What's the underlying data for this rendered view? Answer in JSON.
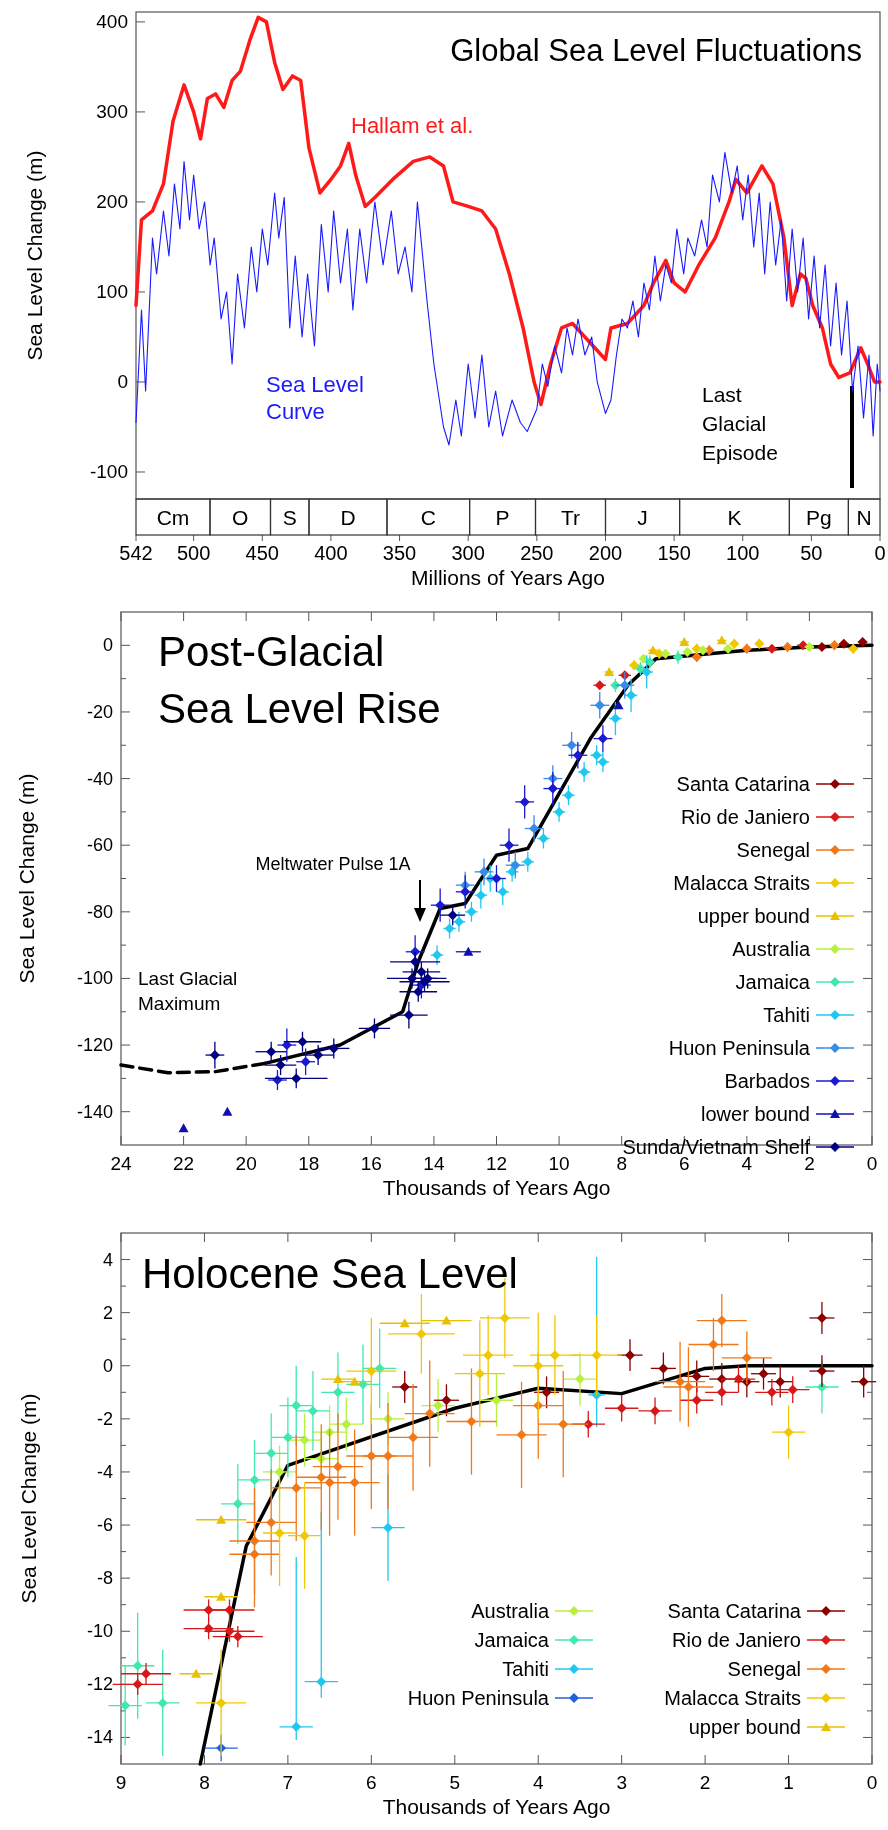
{
  "chart_data": [
    {
      "type": "line",
      "title": "Global Sea Level Fluctuations",
      "xlabel": "Millions of Years Ago",
      "ylabel": "Sea Level Change (m)",
      "xlim": [
        542,
        0
      ],
      "ylim": [
        -130,
        411
      ],
      "xticks": [
        542,
        500,
        450,
        400,
        350,
        300,
        250,
        200,
        150,
        100,
        50,
        0
      ],
      "yticks": [
        -100,
        0,
        100,
        200,
        300,
        400
      ],
      "series": [
        {
          "name": "Hallam et al.",
          "color": "#ff1a1a",
          "x": [
            542,
            538,
            530,
            522,
            515,
            507,
            500,
            495,
            490,
            484,
            478,
            472,
            466,
            459,
            453,
            447,
            441,
            435,
            428,
            422,
            416,
            408,
            400,
            393,
            387,
            382,
            375,
            368,
            355,
            340,
            328,
            318,
            311,
            300,
            290,
            280,
            270,
            260,
            252,
            247,
            240,
            232,
            224,
            212,
            200,
            196,
            184,
            172,
            165,
            156,
            150,
            142,
            132,
            120,
            110,
            105,
            97,
            86,
            78,
            70,
            64,
            58,
            54,
            49,
            42,
            36,
            30,
            22,
            14,
            9,
            4,
            0
          ],
          "values": [
            85,
            180,
            190,
            220,
            290,
            330,
            300,
            270,
            315,
            320,
            305,
            335,
            345,
            380,
            405,
            400,
            355,
            325,
            340,
            335,
            260,
            210,
            225,
            240,
            265,
            230,
            195,
            205,
            225,
            245,
            250,
            240,
            200,
            195,
            190,
            170,
            120,
            60,
            0,
            -25,
            20,
            60,
            65,
            45,
            25,
            60,
            65,
            85,
            110,
            135,
            110,
            100,
            130,
            160,
            200,
            225,
            210,
            240,
            220,
            160,
            85,
            120,
            115,
            85,
            60,
            20,
            5,
            10,
            38,
            20,
            0,
            0
          ]
        },
        {
          "name": "Sea Level Curve",
          "color": "#1a1aff",
          "x": [
            542,
            538,
            535,
            530,
            527,
            522,
            518,
            514,
            510,
            507,
            503,
            500,
            496,
            492,
            488,
            485,
            480,
            476,
            472,
            468,
            463,
            458,
            454,
            450,
            446,
            441,
            438,
            434,
            430,
            426,
            421,
            417,
            412,
            407,
            402,
            398,
            393,
            388,
            384,
            379,
            374,
            368,
            362,
            356,
            351,
            346,
            341,
            337,
            330,
            325,
            318,
            314,
            309,
            305,
            300,
            295,
            290,
            285,
            280,
            275,
            268,
            262,
            257,
            250,
            246,
            242,
            237,
            232,
            228,
            224,
            220,
            215,
            210,
            206,
            200,
            196,
            192,
            188,
            184,
            180,
            176,
            172,
            168,
            164,
            160,
            156,
            152,
            148,
            143,
            140,
            135,
            130,
            126,
            122,
            117,
            113,
            108,
            104,
            100,
            96,
            92,
            88,
            84,
            80,
            76,
            72,
            68,
            64,
            60,
            56,
            52,
            48,
            44,
            40,
            36,
            32,
            28,
            24,
            20,
            16,
            12,
            8,
            5,
            2,
            0
          ],
          "values": [
            -45,
            80,
            -10,
            160,
            120,
            190,
            140,
            220,
            170,
            245,
            180,
            230,
            170,
            200,
            130,
            160,
            70,
            100,
            20,
            120,
            60,
            150,
            100,
            170,
            130,
            210,
            160,
            205,
            60,
            140,
            50,
            120,
            40,
            175,
            100,
            190,
            110,
            170,
            80,
            170,
            110,
            200,
            130,
            190,
            120,
            150,
            100,
            200,
            90,
            20,
            -50,
            -70,
            -20,
            -60,
            20,
            -40,
            30,
            -50,
            -10,
            -60,
            -20,
            -45,
            -55,
            -30,
            20,
            -5,
            40,
            10,
            60,
            30,
            70,
            30,
            50,
            0,
            -35,
            -20,
            30,
            70,
            60,
            90,
            50,
            110,
            80,
            140,
            90,
            130,
            110,
            170,
            120,
            160,
            140,
            180,
            150,
            230,
            200,
            255,
            210,
            240,
            180,
            230,
            150,
            210,
            120,
            200,
            130,
            180,
            90,
            170,
            100,
            160,
            70,
            140,
            60,
            130,
            40,
            110,
            30,
            90,
            -10,
            40,
            -40,
            30,
            -60,
            20,
            -10
          ]
        }
      ],
      "annotations": [
        "Last Glacial Episode",
        "Cm",
        "O",
        "S",
        "D",
        "C",
        "P",
        "Tr",
        "J",
        "K",
        "Pg",
        "N"
      ]
    },
    {
      "type": "scatter",
      "title": "Post-Glacial Sea Level Rise",
      "xlabel": "Thousands of Years Ago",
      "ylabel": "Sea Level Change (m)",
      "xlim": [
        24,
        0
      ],
      "ylim": [
        -150,
        10
      ],
      "xticks": [
        24,
        22,
        20,
        18,
        16,
        14,
        12,
        10,
        8,
        6,
        4,
        2,
        0
      ],
      "yticks": [
        0,
        -20,
        -40,
        -60,
        -80,
        -100,
        -120,
        -140,
        {
          "value": -10,
          "label": null
        },
        {
          "value": -30,
          "label": null
        },
        {
          "value": -50,
          "label": null
        },
        {
          "value": -70,
          "label": null
        },
        {
          "value": -90,
          "label": null
        },
        {
          "value": -110,
          "label": null
        },
        {
          "value": -130,
          "label": null
        }
      ],
      "marker": "diamond",
      "legend": "right",
      "series": [
        {
          "name": "Santa Catarina",
          "color": "#8b0000",
          "x": [
            1.6,
            0.9,
            0.3
          ],
          "values": [
            -0.5,
            0.5,
            1
          ],
          "errors": [
            1,
            1,
            1
          ],
          "xerrors": [
            0.15,
            0.15,
            0.15
          ]
        },
        {
          "name": "Rio de Janiero",
          "color": "#d81818",
          "x": [
            8.7,
            7.9,
            3.2,
            2.2
          ],
          "values": [
            -12,
            -9,
            -1,
            0
          ],
          "errors": [
            1,
            1,
            1,
            1
          ],
          "xerrors": [
            0.2,
            0.2,
            0.2,
            0.2
          ]
        },
        {
          "name": "Senegal",
          "color": "#f07818",
          "x": [
            5.6,
            5.2,
            4.0,
            2.7,
            1.2
          ],
          "values": [
            -3.5,
            -1.5,
            -1,
            -0.5,
            0
          ],
          "errors": [
            1.5,
            1.5,
            1.5,
            1.5,
            1.5
          ],
          "xerrors": [
            0.15,
            0.15,
            0.15,
            0.15,
            0.15
          ]
        },
        {
          "name": "Malacca Straits",
          "color": "#f0c800",
          "x": [
            7.6,
            6.8,
            5.6,
            4.4,
            3.6,
            0.6
          ],
          "values": [
            -6,
            -2.5,
            -1,
            0.5,
            0.5,
            -1
          ],
          "errors": [
            1.5,
            1.5,
            1.5,
            1.5,
            1.5,
            1.5
          ],
          "xerrors": [
            0.15,
            0.15,
            0.15,
            0.15,
            0.15,
            0.15
          ]
        },
        {
          "name": "upper bound",
          "color": "#e8c000",
          "marker": "triangle",
          "x": [
            8.4,
            7.0,
            6.0,
            4.8
          ],
          "values": [
            -8,
            -1.5,
            1,
            1.5
          ],
          "xerrors": [
            0.15,
            0.15,
            0.15,
            0.15
          ]
        },
        {
          "name": "Australia",
          "color": "#b8f040",
          "x": [
            7.3,
            6.6,
            5.9,
            5.4,
            4.6,
            2.0
          ],
          "values": [
            -4,
            -2.5,
            -2,
            -1.5,
            -1,
            -0.5
          ],
          "errors": [
            1,
            1,
            1,
            1,
            1,
            1
          ],
          "xerrors": [
            0.15,
            0.15,
            0.15,
            0.15,
            0.15,
            0.15
          ]
        },
        {
          "name": "Jamaica",
          "color": "#40e8b0",
          "x": [
            8.2,
            7.4,
            7.1,
            6.2
          ],
          "values": [
            -12,
            -7,
            -5,
            -3.5
          ],
          "errors": [
            2,
            2,
            2,
            2
          ],
          "xerrors": [
            0.15,
            0.15,
            0.15,
            0.15
          ]
        },
        {
          "name": "Tahiti",
          "color": "#20c8f0",
          "x": [
            13.9,
            13.5,
            13.2,
            12.8,
            12.5,
            12.2,
            11.8,
            11.5,
            11.0,
            10.5,
            10.0,
            9.7,
            9.2,
            8.8,
            8.6,
            8.2,
            7.7,
            7.2
          ],
          "values": [
            -93,
            -85,
            -83,
            -80,
            -75,
            -70,
            -74,
            -68,
            -65,
            -58,
            -50,
            -45,
            -38,
            -33,
            -35,
            -22,
            -15,
            -8
          ],
          "errors": [
            3,
            3,
            3,
            3,
            4,
            4,
            4,
            3,
            3,
            3,
            3,
            3,
            3,
            3,
            3,
            5,
            5,
            5
          ],
          "xerrors": [
            0.2,
            0.2,
            0.2,
            0.2,
            0.2,
            0.2,
            0.2,
            0.2,
            0.2,
            0.2,
            0.2,
            0.2,
            0.2,
            0.2,
            0.2,
            0.2,
            0.2,
            0.2
          ]
        },
        {
          "name": "Huon Peninsula",
          "color": "#3a8ae8",
          "x": [
            13.0,
            12.4,
            11.4,
            10.8,
            10.2,
            9.6,
            8.7,
            7.9
          ],
          "values": [
            -72,
            -68,
            -66,
            -55,
            -40,
            -30,
            -18,
            -12
          ],
          "errors": [
            4,
            4,
            4,
            4,
            4,
            4,
            4,
            4
          ],
          "xerrors": [
            0.3,
            0.3,
            0.3,
            0.3,
            0.3,
            0.3,
            0.3,
            0.3
          ]
        },
        {
          "name": "Barbados",
          "color": "#1a1ad0",
          "x": [
            19.0,
            18.7,
            18.1,
            14.6,
            14.4,
            13.8,
            13.0,
            12.0,
            11.6,
            11.1,
            10.2,
            9.4,
            8.6
          ],
          "values": [
            -130.5,
            -120,
            -125,
            -92,
            -102,
            -78,
            -74,
            -70,
            -60,
            -47,
            -43,
            -33,
            -28
          ],
          "errors": [
            3,
            5,
            4,
            5,
            4,
            5,
            5,
            4,
            5,
            5,
            5,
            4,
            4
          ],
          "xerrors": [
            0.3,
            0.3,
            0.3,
            0.3,
            0.3,
            0.3,
            0.3,
            0.3,
            0.3,
            0.3,
            0.3,
            0.3,
            0.3
          ]
        },
        {
          "name": "lower bound",
          "color": "#1010b0",
          "marker": "triangle",
          "x": [
            22,
            20.6,
            12.9,
            8.1
          ],
          "values": [
            -145,
            -140,
            -92,
            -18
          ],
          "xerrors": [
            null,
            null,
            0.4,
            null
          ]
        },
        {
          "name": "Sunda/Vietnam Shelf",
          "color": "#000080",
          "x": [
            21,
            19.2,
            18.9,
            18.4,
            18.2,
            17.7,
            17.2,
            15.9,
            14.8,
            14.7,
            14.6,
            14.5,
            14.4,
            14.3,
            14.2,
            13.4
          ],
          "values": [
            -123,
            -122,
            -126,
            -130,
            -119,
            -123,
            -121,
            -115,
            -111,
            -100,
            -95,
            -104,
            -98,
            -101,
            -100,
            -81
          ],
          "errors": [
            4,
            3,
            3,
            3,
            3,
            3,
            3,
            3,
            4,
            3,
            3,
            3,
            3,
            3,
            3,
            3
          ],
          "xerrors": [
            0.3,
            0.5,
            0.5,
            1.0,
            0.6,
            0.5,
            0.5,
            0.5,
            0.6,
            0.8,
            0.8,
            0.6,
            0.6,
            0.8,
            0.6,
            0.4
          ]
        },
        {
          "type": "line",
          "color": "#000000",
          "marker": "none",
          "line_style": "dashed",
          "x": [
            24,
            22.5,
            21,
            19.4
          ],
          "values": [
            -126,
            -128.3,
            -128,
            -125.5
          ]
        },
        {
          "type": "line",
          "color": "#000000",
          "marker": "none",
          "x": [
            19.4,
            17,
            15,
            14.5,
            13.8,
            13,
            12,
            11,
            9,
            7.8,
            6.9,
            4,
            2,
            0
          ],
          "values": [
            -125.5,
            -120,
            -110,
            -95,
            -79,
            -77.5,
            -63,
            -61,
            -28,
            -12,
            -4,
            -1.5,
            -0.5,
            0
          ]
        }
      ],
      "annotations": [
        "Meltwater Pulse 1A",
        "Last Glacial Maximum"
      ]
    },
    {
      "type": "scatter",
      "title": "Holocene Sea Level",
      "xlabel": "Thousands of Years Ago",
      "ylabel": "Sea Level Change (m)",
      "xlim": [
        9,
        0
      ],
      "ylim": [
        -15,
        5
      ],
      "xticks": [
        9,
        8,
        7,
        6,
        5,
        4,
        3,
        2,
        1,
        0
      ],
      "yticks": [
        4,
        2,
        0,
        -2,
        -4,
        -6,
        -8,
        -10,
        -12,
        -14,
        {
          "value": 3,
          "label": null
        },
        {
          "value": 1,
          "label": null
        },
        {
          "value": -1,
          "label": null
        },
        {
          "value": -3,
          "label": null
        },
        {
          "value": -5,
          "label": null
        },
        {
          "value": -7,
          "label": null
        },
        {
          "value": -9,
          "label": null
        },
        {
          "value": -11,
          "label": null
        },
        {
          "value": -13,
          "label": null
        }
      ],
      "marker": "diamond",
      "legend": "bottom right",
      "series": [
        {
          "name": "Australia",
          "color": "#b8f040",
          "x": [
            6.8,
            6.5,
            6.3,
            5.8,
            5.2,
            4.5,
            3.5,
            6.6,
            7.1
          ],
          "values": [
            -2.8,
            -2.5,
            -2.2,
            -2.0,
            -1.5,
            -1.3,
            -0.5,
            -3.5,
            -4.0
          ],
          "errors": [
            1,
            1,
            1,
            1,
            1,
            1,
            1,
            1,
            1
          ],
          "xerrors": [
            0.2,
            0.2,
            0.2,
            0.2,
            0.2,
            0.2,
            0.2,
            0.2,
            0.2
          ]
        },
        {
          "name": "Jamaica",
          "color": "#40e8b0",
          "x": [
            8.8,
            8.5,
            8.95,
            7.6,
            7.4,
            7.2,
            7.0,
            6.9,
            6.7,
            6.4,
            6.1,
            5.9,
            0.6
          ],
          "values": [
            -11.3,
            -12.7,
            -12.8,
            -5.2,
            -4.3,
            -3.3,
            -2.7,
            -1.5,
            -1.7,
            -1.0,
            -0.7,
            -0.1,
            -0.8
          ],
          "errors": [
            2,
            2,
            1.5,
            1.5,
            1.5,
            1.5,
            1.5,
            1.5,
            1.5,
            1.5,
            1.5,
            1.5,
            1
          ],
          "xerrors": [
            0.2,
            0.2,
            0.2,
            0.2,
            0.2,
            0.2,
            0.2,
            0.2,
            0.2,
            0.2,
            0.2,
            0.2,
            0.2
          ]
        },
        {
          "name": "Tahiti",
          "color": "#20c8f0",
          "x": [
            6.9,
            6.6,
            5.8,
            3.3
          ],
          "values": [
            -13.6,
            -11.9,
            -6.1,
            -1.1
          ],
          "errors": [
            [
              -14.1,
              -7.2
            ],
            [
              -12.5,
              -5.5
            ],
            2,
            [
              -2.3,
              4.1
            ]
          ],
          "xerrors": [
            0.2,
            0.2,
            0.2,
            0.1
          ]
        },
        {
          "name": "Huon Peninsula",
          "color": "#2060e0",
          "x": [
            7.8
          ],
          "values": [
            -14.4
          ],
          "errors": [
            0.5
          ],
          "xerrors": [
            0.2
          ]
        },
        {
          "name": "Santa Catarina",
          "color": "#8b0000",
          "x": [
            5.6,
            5.1,
            3.9,
            2.9,
            2.5,
            2.1,
            1.8,
            1.5,
            1.3,
            0.6,
            0.6,
            0.1,
            1.1
          ],
          "values": [
            -0.8,
            -1.3,
            -1.0,
            0.4,
            -0.1,
            -0.4,
            -0.5,
            -0.6,
            -0.3,
            1.8,
            -0.2,
            -0.6,
            -0.6
          ],
          "errors": [
            0.6,
            0.6,
            0.6,
            0.6,
            0.6,
            0.6,
            0.6,
            0.6,
            0.6,
            0.6,
            0.6,
            0.6,
            0.6
          ],
          "xerrors": [
            0.15,
            0.15,
            0.15,
            0.15,
            0.15,
            0.15,
            0.15,
            0.15,
            0.15,
            0.15,
            0.15,
            0.15,
            0.15
          ]
        },
        {
          "name": "Rio de Janiero",
          "color": "#d81818",
          "x": [
            8.8,
            8.7,
            7.95,
            7.95,
            7.7,
            7.7,
            7.6,
            3.0,
            2.6,
            2.1,
            1.8,
            1.6,
            1.2,
            0.95,
            3.4
          ],
          "values": [
            -12.0,
            -11.6,
            -9.2,
            -9.9,
            -9.2,
            -10.0,
            -10.2,
            -1.6,
            -1.7,
            -1.3,
            -1.0,
            -0.5,
            -1.0,
            -0.9,
            -2.2
          ],
          "errors": [
            0.4,
            0.4,
            0.4,
            0.4,
            0.4,
            0.4,
            0.4,
            0.5,
            0.5,
            0.5,
            0.5,
            0.5,
            0.5,
            0.5,
            0.5
          ],
          "xerrors": [
            0.3,
            0.3,
            0.3,
            0.3,
            0.3,
            0.3,
            0.3,
            0.2,
            0.2,
            0.2,
            0.2,
            0.2,
            0.2,
            0.2,
            0.2
          ]
        },
        {
          "name": "Senegal",
          "color": "#f07818",
          "x": [
            7.4,
            7.4,
            7.2,
            6.9,
            6.5,
            6.2,
            6.0,
            5.8,
            6.6,
            6.4,
            5.5,
            5.3,
            4.8,
            4.2,
            3.7,
            4.0,
            2.3,
            1.8,
            1.9,
            2.2,
            1.5
          ],
          "values": [
            -6.6,
            -7.1,
            -5.9,
            -4.6,
            -4.4,
            -4.4,
            -3.4,
            -3.4,
            -4.2,
            -3.8,
            -2.7,
            -1.8,
            -2.1,
            -2.6,
            -2.2,
            -1.5,
            -0.6,
            1.7,
            0.8,
            -0.8,
            0.3
          ],
          "errors": [
            2,
            2,
            2,
            2,
            2,
            2,
            2,
            2,
            2,
            2,
            2,
            2,
            2,
            2,
            2,
            2,
            1.5,
            1,
            1,
            1.5,
            1
          ],
          "xerrors": [
            0.3,
            0.3,
            0.3,
            0.3,
            0.3,
            0.3,
            0.3,
            0.3,
            0.3,
            0.3,
            0.3,
            0.3,
            0.3,
            0.3,
            0.3,
            0.3,
            0.3,
            0.3,
            0.3,
            0.3,
            0.3
          ]
        },
        {
          "name": "Malacca Straits",
          "color": "#f0c800",
          "x": [
            7.8,
            7.1,
            6.8,
            5.4,
            4.6,
            4.4,
            4.0,
            3.8,
            3.3,
            1.0,
            4.7,
            6.0
          ],
          "values": [
            -12.7,
            -6.3,
            -6.4,
            1.2,
            0.4,
            1.8,
            0.0,
            0.4,
            0.4,
            -2.5,
            -0.3,
            -0.2
          ],
          "errors": [
            2,
            2,
            2,
            1.5,
            1.5,
            1.5,
            2,
            1.5,
            1.5,
            1,
            2,
            2
          ],
          "xerrors": [
            0.3,
            0.2,
            0.2,
            0.4,
            0.3,
            0.3,
            0.3,
            0.3,
            0.3,
            0.2,
            0.3,
            0.3
          ]
        },
        {
          "name": "upper bound",
          "color": "#e8c000",
          "marker": "triangle",
          "x": [
            8.1,
            7.8,
            5.6,
            5.1,
            6.4,
            6.2,
            7.8
          ],
          "values": [
            -11.6,
            -5.8,
            1.6,
            1.7,
            -0.5,
            -0.6,
            -8.7
          ],
          "xerrors": [
            0.2,
            0.3,
            0.3,
            0.3,
            0.2,
            0.2,
            0.2
          ]
        },
        {
          "type": "line",
          "color": "#000000",
          "marker": "none",
          "x": [
            8.05,
            7.5,
            7.0,
            5.0,
            4.0,
            3.0,
            2.0,
            1.5,
            0
          ],
          "values": [
            -15,
            -6.8,
            -3.75,
            -1.6,
            -0.85,
            -1.05,
            -0.1,
            0,
            0
          ]
        }
      ]
    }
  ]
}
